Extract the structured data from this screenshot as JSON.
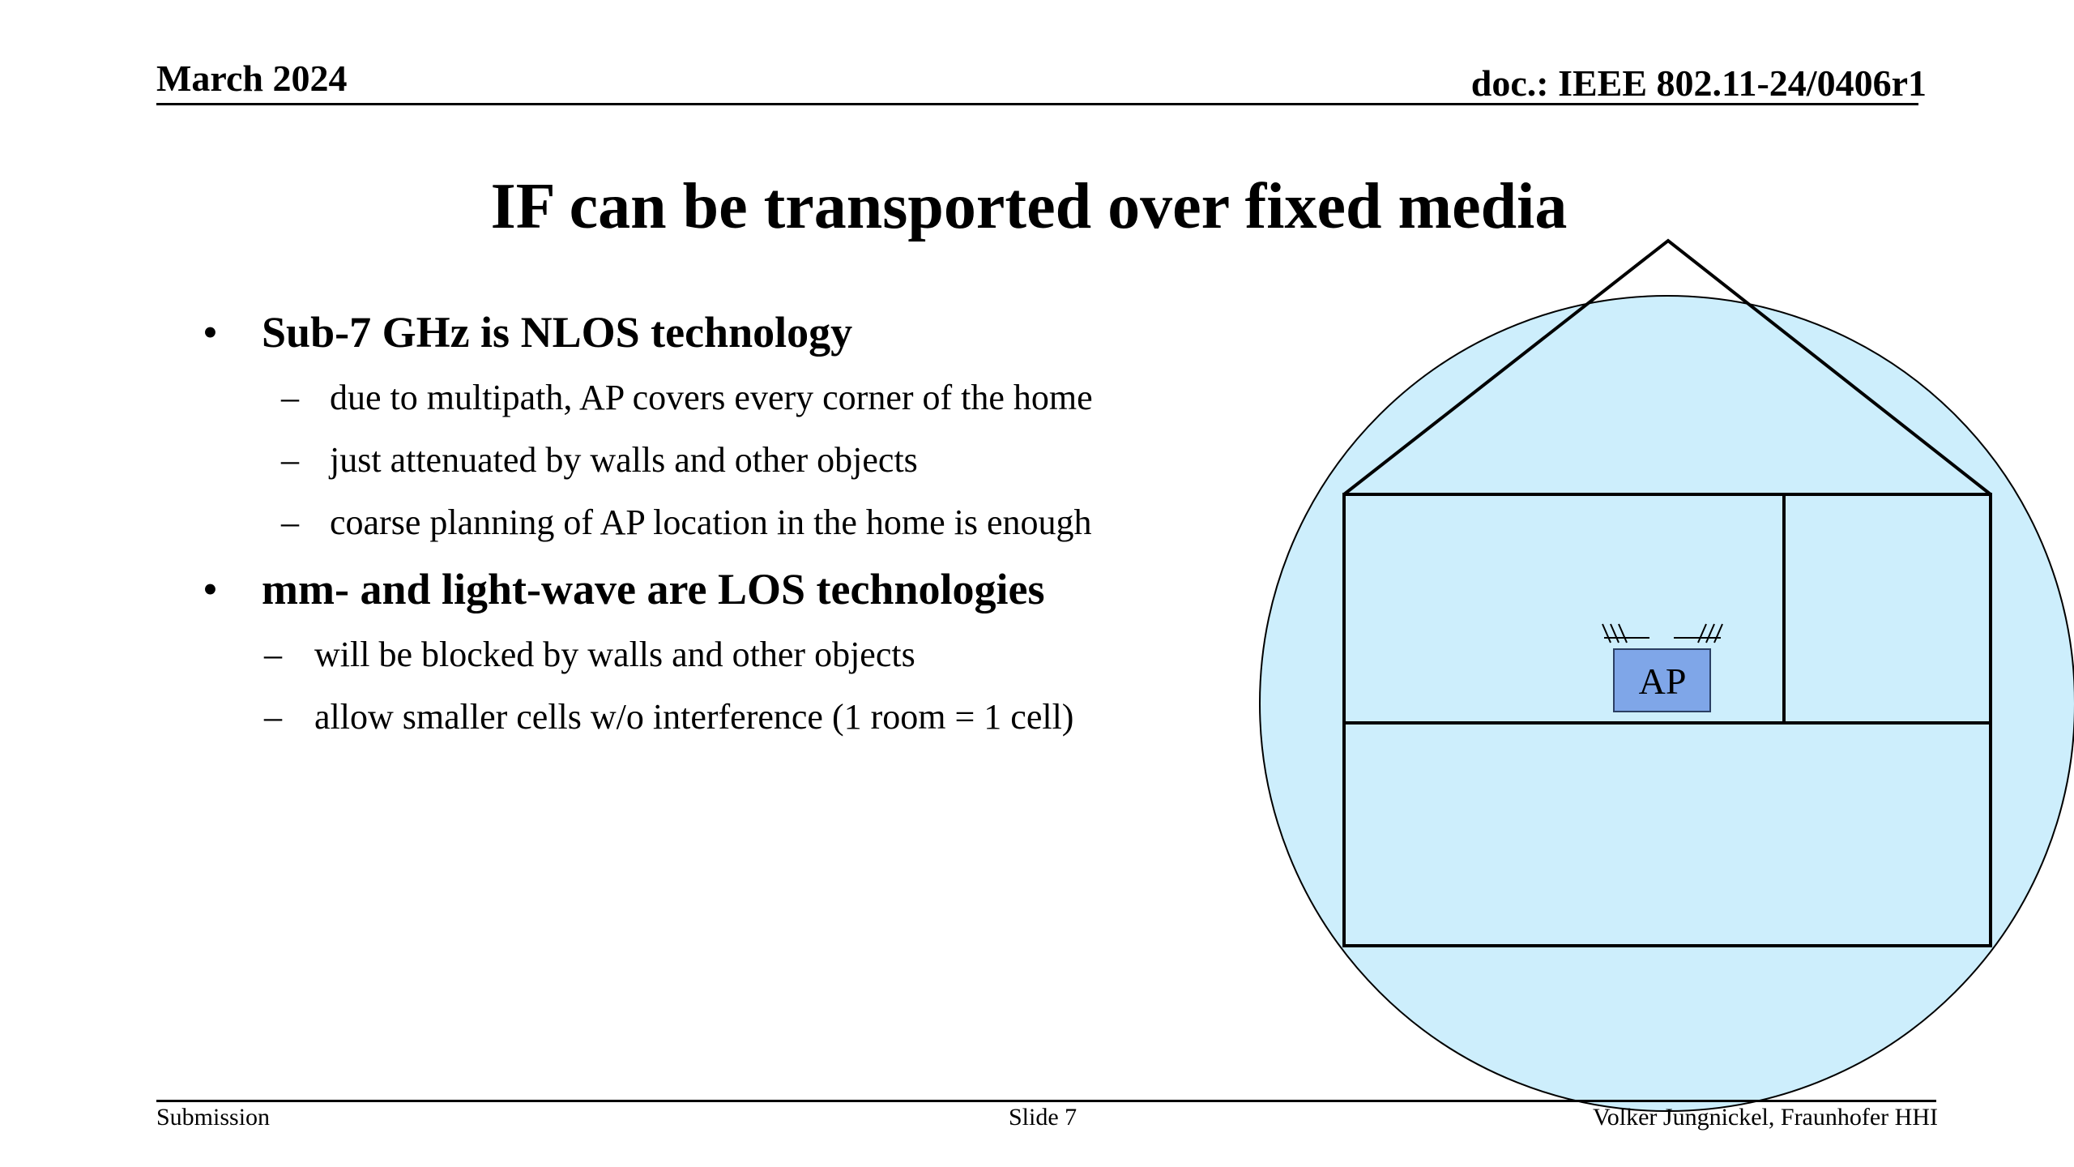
{
  "header": {
    "date": "March 2024",
    "doc_id": "doc.: IEEE 802.11-24/0406r1"
  },
  "slide": {
    "title": "IF can be transported over fixed media",
    "bullets": [
      {
        "text": "Sub-7 GHz is NLOS technology",
        "subitems": [
          "due to multipath, AP covers every corner of the home",
          "just attenuated by walls and other objects",
          "coarse planning of AP location in the home is enough"
        ]
      },
      {
        "text": "mm- and light-wave are LOS technologies",
        "subitems": [
          "will be blocked by walls and other objects",
          "allow smaller cells w/o interference (1 room = 1 cell)"
        ]
      }
    ],
    "bullet_glyph": "•",
    "dash_glyph": "–"
  },
  "diagram": {
    "ap_label": "AP",
    "coverage_color": "#cdeefc",
    "ap_color": "#7fa6e8",
    "icon": "house-with-ap-coverage"
  },
  "footer": {
    "left": "Submission",
    "center": "Slide 7",
    "right": "Volker Jungnickel, Fraunhofer HHI"
  }
}
